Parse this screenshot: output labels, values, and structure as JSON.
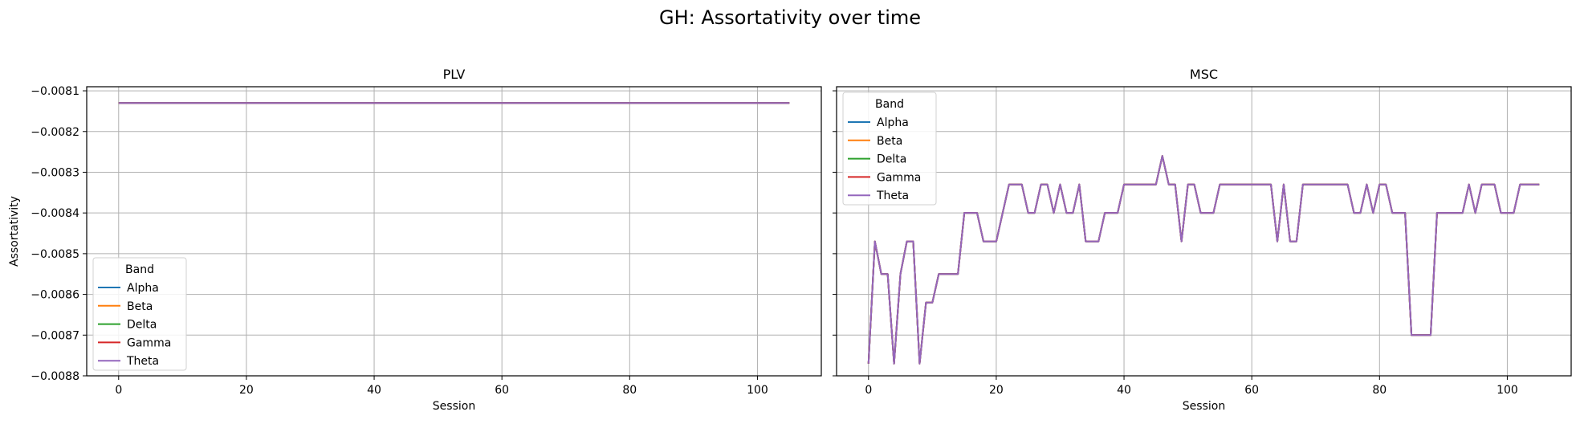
{
  "figure": {
    "title": "GH: Assortativity over time"
  },
  "chart_data": [
    {
      "type": "line",
      "title": "PLV",
      "xlabel": "Session",
      "ylabel": "Assortativity",
      "xlim": [
        -5,
        110
      ],
      "ylim": [
        -0.0088,
        -0.00809
      ],
      "xticks": [
        0,
        20,
        40,
        60,
        80,
        100
      ],
      "xtick_labels": [
        "0",
        "20",
        "40",
        "60",
        "80",
        "100"
      ],
      "yticks": [
        -0.0081,
        -0.0082,
        -0.0083,
        -0.0084,
        -0.0085,
        -0.0086,
        -0.0087,
        -0.0088
      ],
      "ytick_labels": [
        "−0.0081",
        "−0.0082",
        "−0.0083",
        "−0.0084",
        "−0.0085",
        "−0.0086",
        "−0.0087",
        "−0.0088"
      ],
      "grid": true,
      "legend": {
        "title": "Band",
        "placement": "lower-left"
      },
      "series": [
        {
          "name": "Alpha",
          "color": "#1f77b4",
          "x": [
            0,
            105
          ],
          "y": [
            -0.00813,
            -0.00813
          ]
        },
        {
          "name": "Beta",
          "color": "#ff7f0e",
          "x": [
            0,
            105
          ],
          "y": [
            -0.00813,
            -0.00813
          ]
        },
        {
          "name": "Delta",
          "color": "#2ca02c",
          "x": [
            0,
            105
          ],
          "y": [
            -0.00813,
            -0.00813
          ]
        },
        {
          "name": "Gamma",
          "color": "#d62728",
          "x": [
            0,
            105
          ],
          "y": [
            -0.00813,
            -0.00813
          ]
        },
        {
          "name": "Theta",
          "color": "#9467bd",
          "x": [
            0,
            105
          ],
          "y": [
            -0.00813,
            -0.00813
          ]
        }
      ]
    },
    {
      "type": "line",
      "title": "MSC",
      "xlabel": "Session",
      "ylabel": "",
      "xlim": [
        -5,
        110
      ],
      "ylim": [
        -0.0088,
        -0.00809
      ],
      "xticks": [
        0,
        20,
        40,
        60,
        80,
        100
      ],
      "xtick_labels": [
        "0",
        "20",
        "40",
        "60",
        "80",
        "100"
      ],
      "yticks": [
        -0.0081,
        -0.0082,
        -0.0083,
        -0.0084,
        -0.0085,
        -0.0086,
        -0.0087,
        -0.0088
      ],
      "ytick_labels": [],
      "grid": true,
      "legend": {
        "title": "Band",
        "placement": "upper-left"
      },
      "shared_y_values": [
        -0.00877,
        -0.00847,
        -0.00855,
        -0.00855,
        -0.00877,
        -0.00855,
        -0.00847,
        -0.00847,
        -0.00877,
        -0.00862,
        -0.00862,
        -0.00855,
        -0.00855,
        -0.00855,
        -0.00855,
        -0.0084,
        -0.0084,
        -0.0084,
        -0.00847,
        -0.00847,
        -0.00847,
        -0.0084,
        -0.00833,
        -0.00833,
        -0.00833,
        -0.0084,
        -0.0084,
        -0.00833,
        -0.00833,
        -0.0084,
        -0.00833,
        -0.0084,
        -0.0084,
        -0.00833,
        -0.00847,
        -0.00847,
        -0.00847,
        -0.0084,
        -0.0084,
        -0.0084,
        -0.00833,
        -0.00833,
        -0.00833,
        -0.00833,
        -0.00833,
        -0.00833,
        -0.00826,
        -0.00833,
        -0.00833,
        -0.00847,
        -0.00833,
        -0.00833,
        -0.0084,
        -0.0084,
        -0.0084,
        -0.00833,
        -0.00833,
        -0.00833,
        -0.00833,
        -0.00833,
        -0.00833,
        -0.00833,
        -0.00833,
        -0.00833,
        -0.00847,
        -0.00833,
        -0.00847,
        -0.00847,
        -0.00833,
        -0.00833,
        -0.00833,
        -0.00833,
        -0.00833,
        -0.00833,
        -0.00833,
        -0.00833,
        -0.0084,
        -0.0084,
        -0.00833,
        -0.0084,
        -0.00833,
        -0.00833,
        -0.0084,
        -0.0084,
        -0.0084,
        -0.0087,
        -0.0087,
        -0.0087,
        -0.0087,
        -0.0084,
        -0.0084,
        -0.0084,
        -0.0084,
        -0.0084,
        -0.00833,
        -0.0084,
        -0.00833,
        -0.00833,
        -0.00833,
        -0.0084,
        -0.0084,
        -0.0084,
        -0.00833,
        -0.00833,
        -0.00833,
        -0.00833
      ],
      "series": [
        {
          "name": "Alpha",
          "color": "#1f77b4"
        },
        {
          "name": "Beta",
          "color": "#ff7f0e"
        },
        {
          "name": "Delta",
          "color": "#2ca02c"
        },
        {
          "name": "Gamma",
          "color": "#d62728"
        },
        {
          "name": "Theta",
          "color": "#9467bd"
        }
      ]
    }
  ]
}
